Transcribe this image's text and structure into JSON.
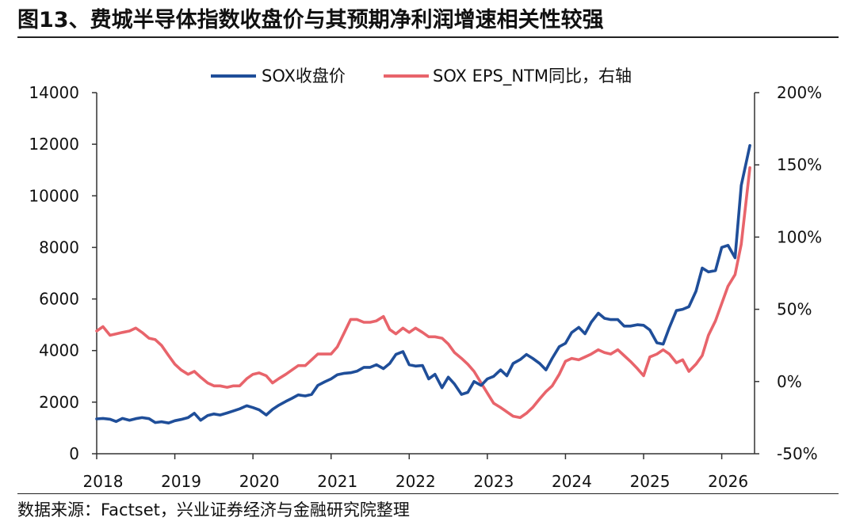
{
  "header": {
    "title": "图13、费城半导体指数收盘价与其预期净利润增速相关性较强"
  },
  "footer": {
    "source": "数据来源：Factset，兴业证券经济与金融研究院整理"
  },
  "chart_data": {
    "type": "line",
    "title": "图13、费城半导体指数收盘价与其预期净利润增速相关性较强",
    "x_ticks": [
      "2018",
      "2019",
      "2020",
      "2021",
      "2022",
      "2023",
      "2024",
      "2025",
      "2026"
    ],
    "x_range": [
      2018.0,
      2026.42
    ],
    "y_left": {
      "ticks": [
        "0",
        "2000",
        "4000",
        "6000",
        "8000",
        "10000",
        "12000",
        "14000"
      ],
      "range": [
        0,
        14000
      ]
    },
    "y_right": {
      "ticks": [
        "-50%",
        "0%",
        "50%",
        "100%",
        "150%",
        "200%"
      ],
      "range": [
        -50,
        200
      ]
    },
    "legend_position": "top-center",
    "grid": false,
    "series": [
      {
        "name": "SOX收盘价",
        "axis": "left",
        "color": "#1f4e99",
        "points": [
          [
            2018.0,
            1350
          ],
          [
            2018.08,
            1370
          ],
          [
            2018.17,
            1340
          ],
          [
            2018.25,
            1250
          ],
          [
            2018.33,
            1370
          ],
          [
            2018.42,
            1300
          ],
          [
            2018.5,
            1360
          ],
          [
            2018.58,
            1400
          ],
          [
            2018.67,
            1360
          ],
          [
            2018.75,
            1210
          ],
          [
            2018.83,
            1240
          ],
          [
            2018.92,
            1190
          ],
          [
            2019.0,
            1280
          ],
          [
            2019.08,
            1330
          ],
          [
            2019.17,
            1400
          ],
          [
            2019.25,
            1570
          ],
          [
            2019.33,
            1300
          ],
          [
            2019.42,
            1480
          ],
          [
            2019.5,
            1540
          ],
          [
            2019.58,
            1500
          ],
          [
            2019.67,
            1580
          ],
          [
            2019.75,
            1660
          ],
          [
            2019.83,
            1740
          ],
          [
            2019.92,
            1860
          ],
          [
            2020.0,
            1790
          ],
          [
            2020.08,
            1700
          ],
          [
            2020.17,
            1500
          ],
          [
            2020.25,
            1720
          ],
          [
            2020.33,
            1880
          ],
          [
            2020.42,
            2030
          ],
          [
            2020.5,
            2150
          ],
          [
            2020.58,
            2280
          ],
          [
            2020.67,
            2240
          ],
          [
            2020.75,
            2300
          ],
          [
            2020.83,
            2650
          ],
          [
            2020.92,
            2790
          ],
          [
            2021.0,
            2900
          ],
          [
            2021.08,
            3060
          ],
          [
            2021.17,
            3120
          ],
          [
            2021.25,
            3140
          ],
          [
            2021.33,
            3200
          ],
          [
            2021.42,
            3350
          ],
          [
            2021.5,
            3350
          ],
          [
            2021.58,
            3450
          ],
          [
            2021.67,
            3300
          ],
          [
            2021.75,
            3500
          ],
          [
            2021.83,
            3850
          ],
          [
            2021.92,
            3960
          ],
          [
            2022.0,
            3450
          ],
          [
            2022.08,
            3400
          ],
          [
            2022.17,
            3420
          ],
          [
            2022.25,
            2900
          ],
          [
            2022.33,
            3080
          ],
          [
            2022.42,
            2560
          ],
          [
            2022.5,
            2970
          ],
          [
            2022.58,
            2700
          ],
          [
            2022.67,
            2300
          ],
          [
            2022.75,
            2380
          ],
          [
            2022.83,
            2800
          ],
          [
            2022.92,
            2650
          ],
          [
            2023.0,
            2900
          ],
          [
            2023.08,
            3000
          ],
          [
            2023.17,
            3250
          ],
          [
            2023.25,
            3020
          ],
          [
            2023.33,
            3500
          ],
          [
            2023.42,
            3650
          ],
          [
            2023.5,
            3850
          ],
          [
            2023.58,
            3700
          ],
          [
            2023.67,
            3500
          ],
          [
            2023.75,
            3250
          ],
          [
            2023.83,
            3700
          ],
          [
            2023.92,
            4150
          ],
          [
            2024.0,
            4280
          ],
          [
            2024.08,
            4700
          ],
          [
            2024.17,
            4900
          ],
          [
            2024.25,
            4650
          ],
          [
            2024.33,
            5100
          ],
          [
            2024.42,
            5450
          ],
          [
            2024.5,
            5250
          ],
          [
            2024.58,
            5200
          ],
          [
            2024.67,
            5200
          ],
          [
            2024.75,
            4950
          ],
          [
            2024.83,
            4950
          ],
          [
            2024.92,
            5000
          ],
          [
            2025.0,
            4980
          ],
          [
            2025.08,
            4800
          ],
          [
            2025.17,
            4300
          ],
          [
            2025.25,
            4250
          ],
          [
            2025.33,
            4900
          ],
          [
            2025.42,
            5550
          ],
          [
            2025.5,
            5600
          ],
          [
            2025.58,
            5700
          ],
          [
            2025.67,
            6300
          ],
          [
            2025.75,
            7200
          ],
          [
            2025.83,
            7050
          ],
          [
            2025.92,
            7100
          ],
          [
            2026.0,
            8000
          ],
          [
            2026.08,
            8080
          ],
          [
            2026.17,
            7600
          ],
          [
            2026.25,
            10400
          ],
          [
            2026.36,
            11950
          ]
        ]
      },
      {
        "name": "SOX EPS_NTM同比，右轴",
        "axis": "right",
        "color": "#e8646b",
        "points": [
          [
            2018.0,
            35
          ],
          [
            2018.08,
            38
          ],
          [
            2018.17,
            32
          ],
          [
            2018.25,
            33
          ],
          [
            2018.33,
            34
          ],
          [
            2018.42,
            35
          ],
          [
            2018.5,
            37
          ],
          [
            2018.58,
            34
          ],
          [
            2018.67,
            30
          ],
          [
            2018.75,
            29
          ],
          [
            2018.83,
            25
          ],
          [
            2018.92,
            18
          ],
          [
            2019.0,
            12
          ],
          [
            2019.08,
            8
          ],
          [
            2019.17,
            5
          ],
          [
            2019.25,
            7
          ],
          [
            2019.33,
            3
          ],
          [
            2019.42,
            -1
          ],
          [
            2019.5,
            -3
          ],
          [
            2019.58,
            -3
          ],
          [
            2019.67,
            -4
          ],
          [
            2019.75,
            -3
          ],
          [
            2019.83,
            -3
          ],
          [
            2019.92,
            2
          ],
          [
            2020.0,
            5
          ],
          [
            2020.08,
            6
          ],
          [
            2020.17,
            4
          ],
          [
            2020.25,
            -1
          ],
          [
            2020.33,
            2
          ],
          [
            2020.42,
            5
          ],
          [
            2020.5,
            8
          ],
          [
            2020.58,
            11
          ],
          [
            2020.67,
            11
          ],
          [
            2020.75,
            15
          ],
          [
            2020.83,
            19
          ],
          [
            2020.92,
            19
          ],
          [
            2021.0,
            19
          ],
          [
            2021.08,
            24
          ],
          [
            2021.17,
            34
          ],
          [
            2021.25,
            43
          ],
          [
            2021.33,
            43
          ],
          [
            2021.42,
            41
          ],
          [
            2021.5,
            41
          ],
          [
            2021.58,
            42
          ],
          [
            2021.67,
            45
          ],
          [
            2021.75,
            36
          ],
          [
            2021.83,
            33
          ],
          [
            2021.92,
            37
          ],
          [
            2022.0,
            34
          ],
          [
            2022.08,
            37
          ],
          [
            2022.17,
            34
          ],
          [
            2022.25,
            31
          ],
          [
            2022.33,
            31
          ],
          [
            2022.42,
            30
          ],
          [
            2022.5,
            26
          ],
          [
            2022.58,
            20
          ],
          [
            2022.67,
            16
          ],
          [
            2022.75,
            12
          ],
          [
            2022.83,
            7
          ],
          [
            2022.92,
            -1
          ],
          [
            2023.0,
            -8
          ],
          [
            2023.08,
            -15
          ],
          [
            2023.17,
            -18
          ],
          [
            2023.25,
            -21
          ],
          [
            2023.33,
            -24
          ],
          [
            2023.42,
            -25
          ],
          [
            2023.5,
            -22
          ],
          [
            2023.58,
            -18
          ],
          [
            2023.67,
            -12
          ],
          [
            2023.75,
            -7
          ],
          [
            2023.83,
            -3
          ],
          [
            2023.92,
            5
          ],
          [
            2024.0,
            14
          ],
          [
            2024.08,
            16
          ],
          [
            2024.17,
            15
          ],
          [
            2024.25,
            17
          ],
          [
            2024.33,
            19
          ],
          [
            2024.42,
            22
          ],
          [
            2024.5,
            20
          ],
          [
            2024.58,
            19
          ],
          [
            2024.67,
            22
          ],
          [
            2024.75,
            18
          ],
          [
            2024.83,
            14
          ],
          [
            2024.92,
            9
          ],
          [
            2025.0,
            4
          ],
          [
            2025.08,
            17
          ],
          [
            2025.17,
            19
          ],
          [
            2025.25,
            22
          ],
          [
            2025.33,
            19
          ],
          [
            2025.42,
            13
          ],
          [
            2025.5,
            15
          ],
          [
            2025.58,
            7
          ],
          [
            2025.67,
            12
          ],
          [
            2025.75,
            18
          ],
          [
            2025.83,
            32
          ],
          [
            2025.92,
            42
          ],
          [
            2026.0,
            54
          ],
          [
            2026.08,
            66
          ],
          [
            2026.17,
            74
          ],
          [
            2026.25,
            95
          ],
          [
            2026.36,
            148
          ]
        ]
      }
    ]
  }
}
